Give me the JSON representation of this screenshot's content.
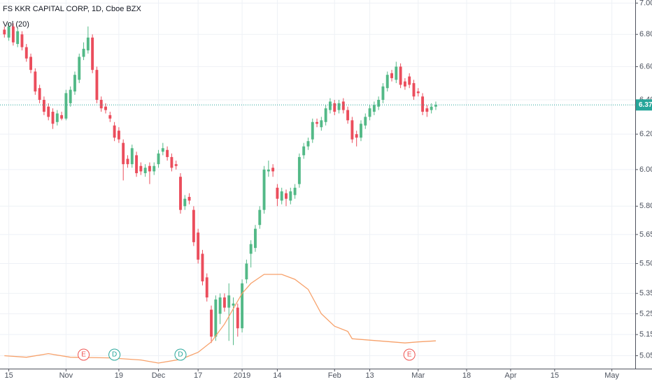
{
  "chart_data": {
    "type": "candlestick",
    "title": "FS KKR CAPITAL CORP, 1D, Cboe BZX",
    "log_scale": true,
    "grid": true,
    "up_color": "#53b987",
    "down_color": "#eb4d5c",
    "x": [
      -1,
      0,
      1,
      2,
      3,
      4,
      5,
      6,
      7,
      8,
      9,
      10,
      11,
      12,
      13,
      14,
      15,
      16,
      17,
      18,
      19,
      20,
      21,
      22,
      23,
      24,
      25,
      26,
      27,
      28,
      29,
      30,
      31,
      32,
      33,
      34,
      35,
      36,
      37,
      38,
      39,
      40,
      41,
      42,
      43,
      44,
      45,
      46,
      47,
      48,
      49,
      50,
      51,
      52,
      53,
      54,
      55,
      56,
      57,
      58,
      59,
      60,
      61,
      62,
      63,
      64,
      65,
      66,
      67,
      68,
      69,
      70,
      71,
      72,
      73,
      74,
      75,
      76,
      77,
      78,
      79,
      80,
      81,
      82,
      83,
      84,
      85,
      86,
      87,
      88,
      89,
      90,
      91,
      92,
      93,
      94,
      95,
      96,
      97
    ],
    "open": [
      6.83,
      6.78,
      6.85,
      6.74,
      6.8,
      6.72,
      6.66,
      6.57,
      6.47,
      6.4,
      6.36,
      6.33,
      6.27,
      6.31,
      6.29,
      6.38,
      6.45,
      6.52,
      6.66,
      6.7,
      6.78,
      6.58,
      6.4,
      6.36,
      6.31,
      6.25,
      6.22,
      6.15,
      6.06,
      6.03,
      6.08,
      6.02,
      5.98,
      6.02,
      5.99,
      6.03,
      6.1,
      6.11,
      6.07,
      6.03,
      5.96,
      5.8,
      5.85,
      5.78,
      5.66,
      5.55,
      5.43,
      5.27,
      5.14,
      5.25,
      5.33,
      5.28,
      5.29,
      5.28,
      5.18,
      5.42,
      5.55,
      5.58,
      5.7,
      5.78,
      5.99,
      6.01,
      5.9,
      5.83,
      5.87,
      5.83,
      5.86,
      5.92,
      6.08,
      6.13,
      6.17,
      6.27,
      6.24,
      6.27,
      6.34,
      6.38,
      6.34,
      6.39,
      6.34,
      6.28,
      6.2,
      6.18,
      6.25,
      6.3,
      6.33,
      6.36,
      6.4,
      6.47,
      6.56,
      6.52,
      6.6,
      6.51,
      6.54,
      6.5,
      6.45,
      6.42,
      6.35,
      6.34,
      6.36
    ],
    "high": [
      6.85,
      6.87,
      6.87,
      6.84,
      6.82,
      6.74,
      6.68,
      6.59,
      6.49,
      6.42,
      6.38,
      6.35,
      6.34,
      6.33,
      6.46,
      6.48,
      6.57,
      6.68,
      6.75,
      6.85,
      6.8,
      6.6,
      6.42,
      6.38,
      6.33,
      6.27,
      6.24,
      6.17,
      6.08,
      6.14,
      6.1,
      6.04,
      6.03,
      6.04,
      6.04,
      6.11,
      6.15,
      6.13,
      6.09,
      6.05,
      5.98,
      5.86,
      5.87,
      5.8,
      5.68,
      5.57,
      5.45,
      5.29,
      5.34,
      5.35,
      5.35,
      5.4,
      5.33,
      5.3,
      5.42,
      5.52,
      5.62,
      5.7,
      5.8,
      6.02,
      6.05,
      6.03,
      5.92,
      5.9,
      5.89,
      5.9,
      5.92,
      6.09,
      6.15,
      6.18,
      6.29,
      6.29,
      6.3,
      6.37,
      6.41,
      6.4,
      6.4,
      6.41,
      6.36,
      6.3,
      6.22,
      6.28,
      6.32,
      6.37,
      6.39,
      6.42,
      6.5,
      6.57,
      6.58,
      6.63,
      6.62,
      6.53,
      6.56,
      6.52,
      6.47,
      6.44,
      6.37,
      6.38,
      6.39
    ],
    "low": [
      6.78,
      6.76,
      6.73,
      6.72,
      6.7,
      6.63,
      6.56,
      6.43,
      6.38,
      6.31,
      6.28,
      6.23,
      6.25,
      6.28,
      6.28,
      6.36,
      6.43,
      6.5,
      6.64,
      6.68,
      6.56,
      6.38,
      6.33,
      6.32,
      6.27,
      6.16,
      6.15,
      5.94,
      6.01,
      6.01,
      5.96,
      5.97,
      5.96,
      5.92,
      5.97,
      6.01,
      6.08,
      6.05,
      5.99,
      6.0,
      5.76,
      5.78,
      5.81,
      5.59,
      5.5,
      5.39,
      5.31,
      5.11,
      5.12,
      5.2,
      5.26,
      5.12,
      5.1,
      5.14,
      5.16,
      5.4,
      5.48,
      5.56,
      5.68,
      5.76,
      5.96,
      5.96,
      5.8,
      5.81,
      5.8,
      5.81,
      5.84,
      5.9,
      6.06,
      6.11,
      6.15,
      6.24,
      6.22,
      6.25,
      6.32,
      6.31,
      6.32,
      6.32,
      6.26,
      6.15,
      6.13,
      6.16,
      6.23,
      6.28,
      6.31,
      6.34,
      6.38,
      6.45,
      6.51,
      6.5,
      6.47,
      6.46,
      6.47,
      6.4,
      6.42,
      6.31,
      6.3,
      6.32,
      6.34
    ],
    "close": [
      6.8,
      6.85,
      6.75,
      6.82,
      6.72,
      6.65,
      6.58,
      6.45,
      6.4,
      6.33,
      6.3,
      6.26,
      6.32,
      6.29,
      6.44,
      6.46,
      6.55,
      6.66,
      6.71,
      6.78,
      6.58,
      6.4,
      6.35,
      6.34,
      6.29,
      6.18,
      6.17,
      6.03,
      6.03,
      6.12,
      5.98,
      5.99,
      6.01,
      5.99,
      6.02,
      6.09,
      6.12,
      6.07,
      6.01,
      6.02,
      5.78,
      5.84,
      5.83,
      5.61,
      5.52,
      5.41,
      5.33,
      5.14,
      5.32,
      5.33,
      5.28,
      5.34,
      5.3,
      5.18,
      5.4,
      5.5,
      5.6,
      5.68,
      5.78,
      6.0,
      6.0,
      5.99,
      5.84,
      5.88,
      5.84,
      5.88,
      5.9,
      6.07,
      6.13,
      6.16,
      6.27,
      6.26,
      6.28,
      6.35,
      6.39,
      6.33,
      6.38,
      6.34,
      6.28,
      6.17,
      6.18,
      6.26,
      6.3,
      6.35,
      6.37,
      6.4,
      6.48,
      6.55,
      6.53,
      6.6,
      6.49,
      6.48,
      6.49,
      6.42,
      6.44,
      6.33,
      6.33,
      6.36,
      6.37
    ],
    "volume_ma": {
      "name": "Vol (20)",
      "color": "#f7a16a",
      "x": [
        -1,
        4,
        9,
        14,
        23,
        30,
        34,
        39,
        43,
        46,
        49,
        53,
        55,
        58,
        62,
        65,
        68,
        71,
        74,
        77,
        78,
        84,
        87,
        90,
        93,
        97
      ],
      "values": [
        5.05,
        5.043,
        5.06,
        5.043,
        5.04,
        5.03,
        5.016,
        5.033,
        5.066,
        5.115,
        5.2,
        5.35,
        5.4,
        5.445,
        5.445,
        5.42,
        5.37,
        5.25,
        5.19,
        5.165,
        5.13,
        5.12,
        5.115,
        5.11,
        5.115,
        5.12
      ]
    },
    "events": [
      {
        "x": 17,
        "label": "E",
        "color": "#ef5350"
      },
      {
        "x": 24,
        "label": "D",
        "color": "#26a69a"
      },
      {
        "x": 39,
        "label": "D",
        "color": "#26a69a"
      },
      {
        "x": 91,
        "label": "E",
        "color": "#ef5350"
      }
    ],
    "last_price": 6.37,
    "last_color": "#26a69a",
    "ylim": [
      4.99,
      7.02
    ],
    "yticks": [
      {
        "value": 5.05,
        "label": "5.05"
      },
      {
        "value": 5.15,
        "label": "5.15"
      },
      {
        "value": 5.25,
        "label": "5.25"
      },
      {
        "value": 5.35,
        "label": "5.35"
      },
      {
        "value": 5.5,
        "label": "5.50"
      },
      {
        "value": 5.65,
        "label": "5.65"
      },
      {
        "value": 5.8,
        "label": "5.80"
      },
      {
        "value": 6,
        "label": "6.00"
      },
      {
        "value": 6.2,
        "label": "6.20"
      },
      {
        "value": 6.4,
        "label": "6.40"
      },
      {
        "value": 6.6,
        "label": "6.60"
      },
      {
        "value": 6.8,
        "label": "6.80"
      },
      {
        "value": 7,
        "label": "7.00"
      }
    ],
    "xlim": [
      -2,
      142.3
    ],
    "xticks": [
      {
        "value": 0,
        "label": "15"
      },
      {
        "value": 13,
        "label": "Nov"
      },
      {
        "value": 25,
        "label": "19"
      },
      {
        "value": 34,
        "label": "Dec"
      },
      {
        "value": 43,
        "label": "17"
      },
      {
        "value": 53,
        "label": "2019"
      },
      {
        "value": 61,
        "label": "14"
      },
      {
        "value": 74,
        "label": "Feb"
      },
      {
        "value": 82,
        "label": "13"
      },
      {
        "value": 93,
        "label": "Mar"
      },
      {
        "value": 104,
        "label": "18"
      },
      {
        "value": 114,
        "label": "Apr"
      },
      {
        "value": 124,
        "label": "15"
      },
      {
        "value": 137,
        "label": "May"
      }
    ]
  }
}
